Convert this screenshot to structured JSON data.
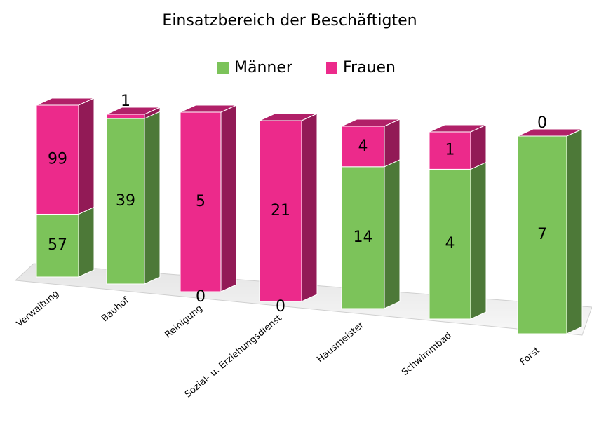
{
  "chart_data": {
    "type": "bar3d_stacked100",
    "title": "Einsatzbereich der Beschäftigten",
    "categories": [
      "Verwaltung",
      "Bauhof",
      "Reinigung",
      "Sozial- u. Erziehungsdienst",
      "Hausmeister",
      "Schwimmbad",
      "Forst"
    ],
    "series": [
      {
        "name": "Männer",
        "color": "#7cc35a",
        "values": [
          57,
          39,
          0,
          0,
          14,
          4,
          7
        ]
      },
      {
        "name": "Frauen",
        "color": "#ec2a8b",
        "values": [
          99,
          1,
          5,
          21,
          4,
          1,
          0
        ]
      }
    ],
    "legend": "top"
  }
}
